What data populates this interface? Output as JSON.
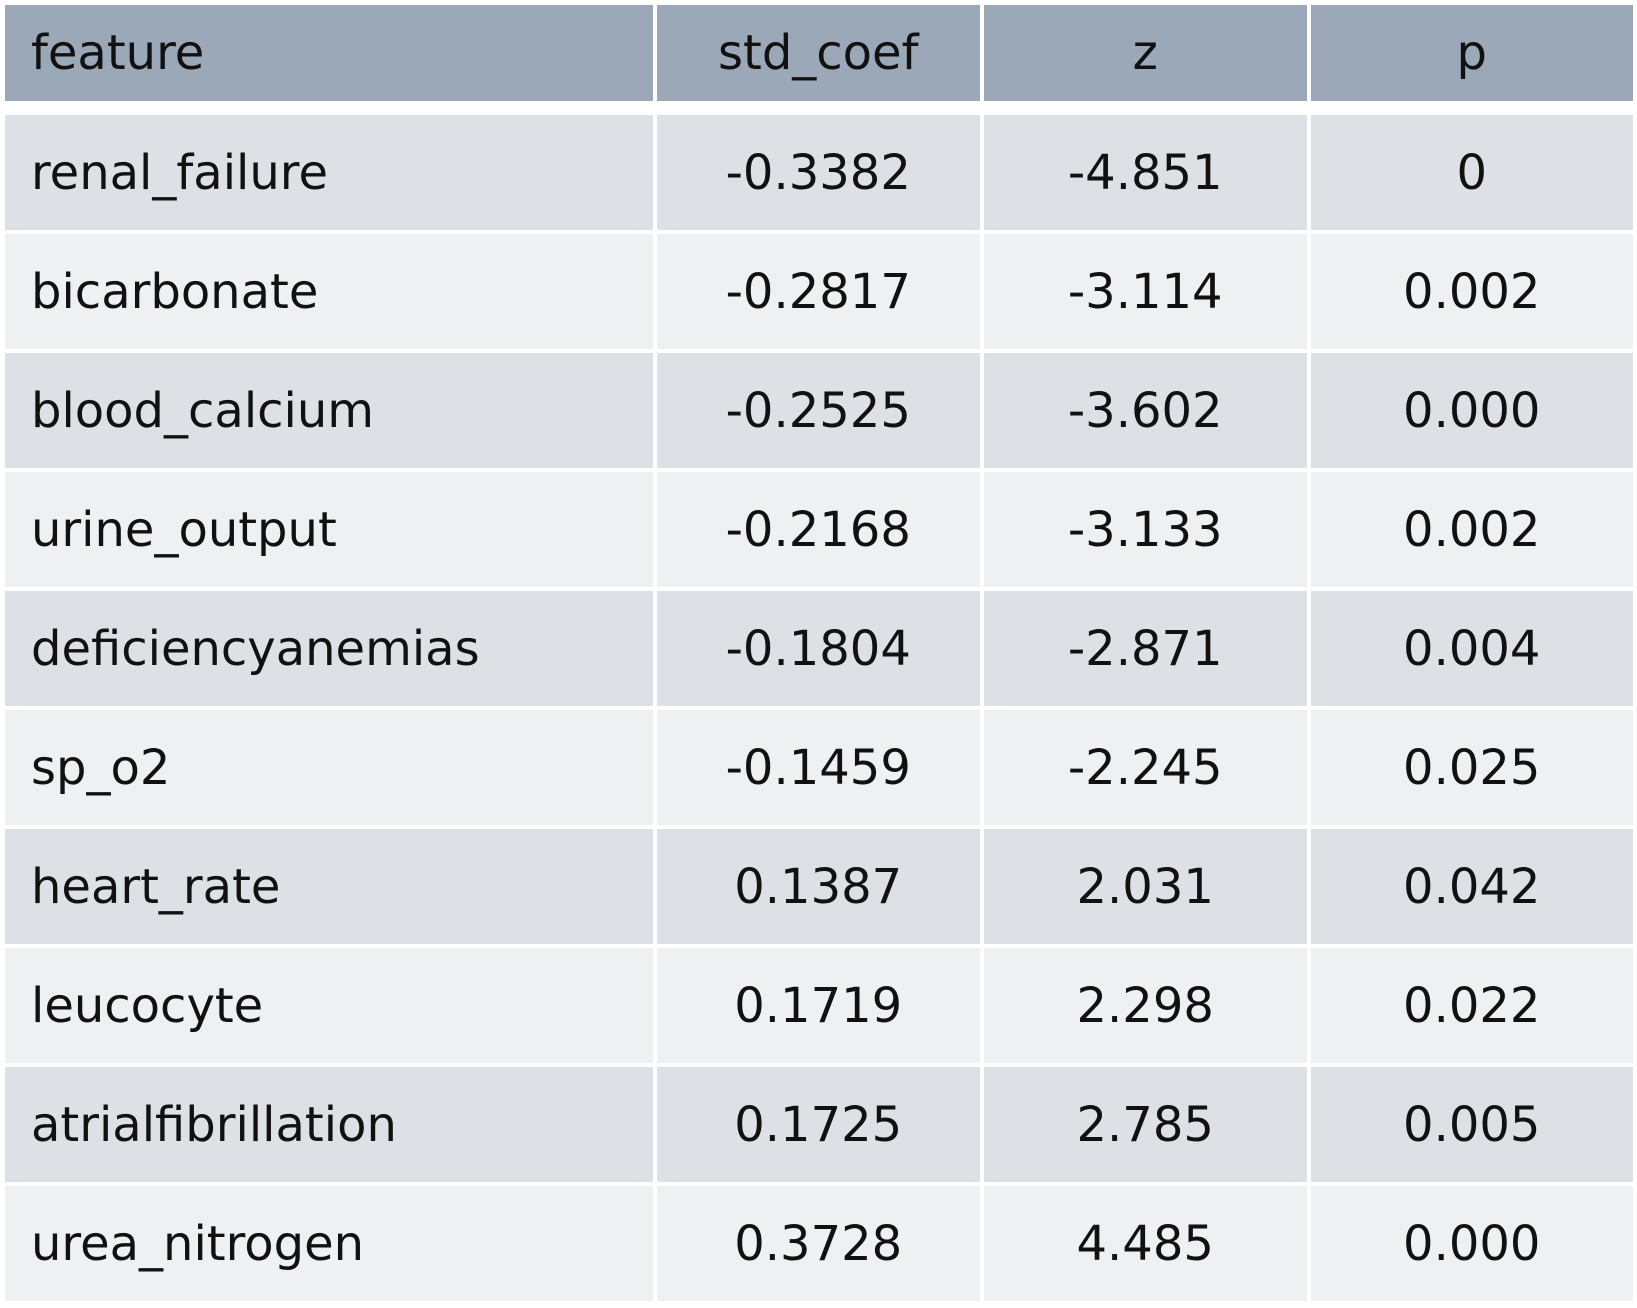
{
  "chart_data": {
    "type": "table",
    "columns": [
      "feature",
      "std_coef",
      "z",
      "p"
    ],
    "rows": [
      [
        "renal_failure",
        "-0.3382",
        "-4.851",
        "0"
      ],
      [
        "bicarbonate",
        "-0.2817",
        "-3.114",
        "0.002"
      ],
      [
        "blood_calcium",
        "-0.2525",
        "-3.602",
        "0.000"
      ],
      [
        "urine_output",
        "-0.2168",
        "-3.133",
        "0.002"
      ],
      [
        "deficiencyanemias",
        "-0.1804",
        "-2.871",
        "0.004"
      ],
      [
        "sp_o2",
        "-0.1459",
        "-2.245",
        "0.025"
      ],
      [
        "heart_rate",
        "0.1387",
        "2.031",
        "0.042"
      ],
      [
        "leucocyte",
        "0.1719",
        "2.298",
        "0.022"
      ],
      [
        "atrialfibrillation",
        "0.1725",
        "2.785",
        "0.005"
      ],
      [
        "urea_nitrogen",
        "0.3728",
        "4.485",
        "0.000"
      ]
    ],
    "colors": {
      "header_bg": "#9aa8b8",
      "row_odd_bg": "#dde0e5",
      "row_even_bg": "#eef0f2",
      "text": "#111111"
    }
  }
}
